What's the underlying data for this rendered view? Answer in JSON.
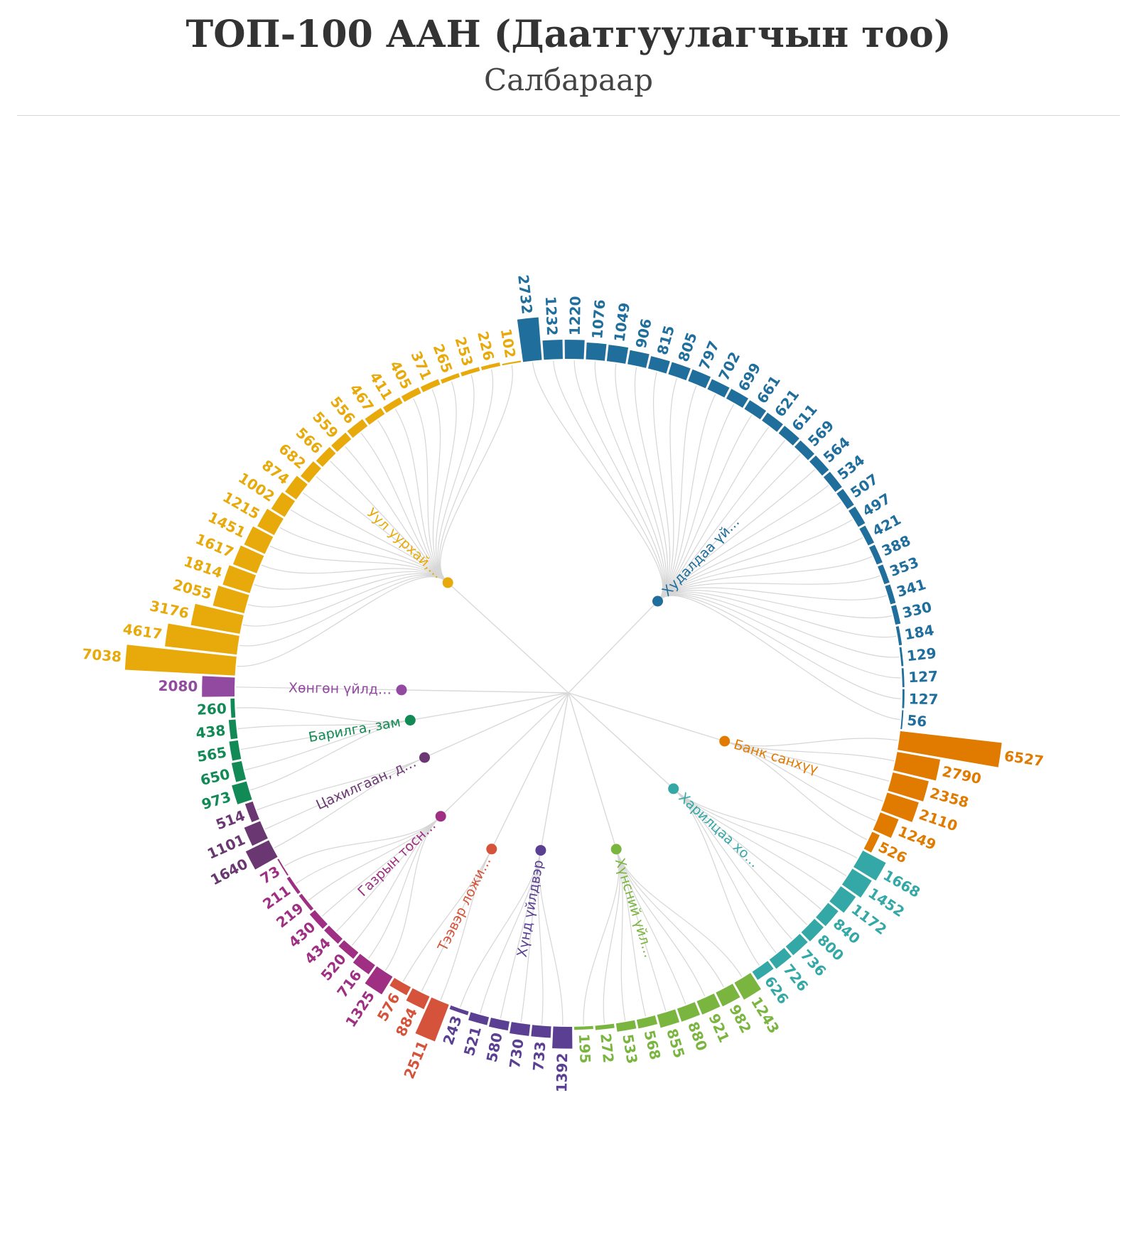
{
  "title": "ТОП-100 ААН (Даатгуулагчын тоо)",
  "subtitle": "Салбараар",
  "chart_data": {
    "type": "radial-bar-dendrogram",
    "groups": [
      {
        "label": "Худалдаа үй…",
        "color": "#1f6e9c",
        "values": [
          2732,
          1232,
          1220,
          1076,
          1049,
          906,
          815,
          805,
          797,
          702,
          699,
          661,
          621,
          611,
          569,
          564,
          534,
          507,
          497,
          421,
          388,
          353,
          341,
          330,
          184,
          129,
          127,
          127,
          56
        ]
      },
      {
        "label": "Банк санхүү",
        "color": "#e07b00",
        "values": [
          6527,
          2790,
          2358,
          2110,
          1249,
          526
        ]
      },
      {
        "label": "Харилцаа хо…",
        "color": "#33a8a6",
        "values": [
          1668,
          1452,
          1172,
          840,
          800,
          736,
          726,
          626
        ]
      },
      {
        "label": "Хүнсний үйл…",
        "color": "#7ab540",
        "values": [
          1243,
          982,
          921,
          880,
          855,
          568,
          533,
          272,
          195
        ]
      },
      {
        "label": "Хүнд үйлдвэр",
        "color": "#5a3f92",
        "values": [
          1392,
          733,
          730,
          580,
          521,
          243
        ]
      },
      {
        "label": "Тээвэр ложи…",
        "color": "#d4533a",
        "values": [
          2511,
          884,
          576
        ]
      },
      {
        "label": "Газрын тосн…",
        "color": "#9e2f82",
        "values": [
          1325,
          716,
          520,
          434,
          430,
          219,
          211,
          73
        ]
      },
      {
        "label": "Цахилгаан, д…",
        "color": "#6b3772",
        "values": [
          1640,
          1101,
          514
        ]
      },
      {
        "label": "Барилга, зам",
        "color": "#128a55",
        "values": [
          973,
          650,
          565,
          438,
          260
        ]
      },
      {
        "label": "Хөнгөн үйлд…",
        "color": "#914aa0",
        "values": [
          2080
        ]
      },
      {
        "label": "Уул уурхай,…",
        "color": "#e8aa0a",
        "values": [
          7038,
          4617,
          3176,
          2055,
          1814,
          1617,
          1451,
          1215,
          1002,
          874,
          682,
          566,
          559,
          556,
          467,
          411,
          405,
          371,
          265,
          253,
          226,
          102
        ]
      }
    ]
  }
}
